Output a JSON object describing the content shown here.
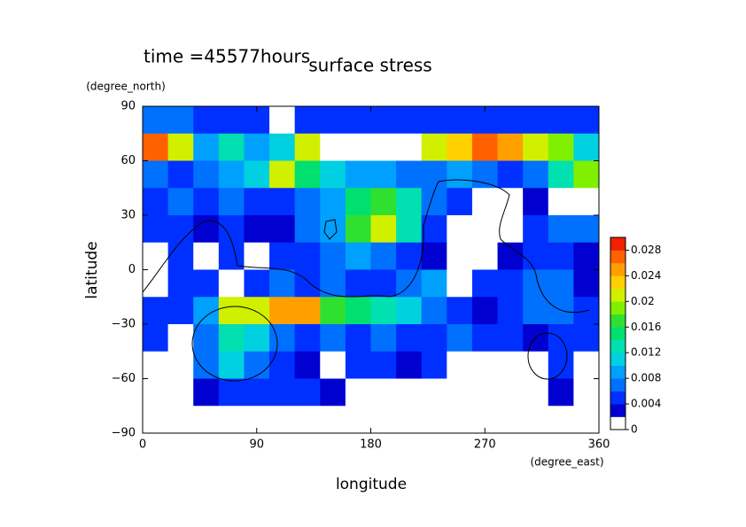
{
  "chart_data": {
    "type": "contour",
    "title": "surface stress",
    "subtitle": "time =45577hours",
    "x_label": "longitude",
    "x_units": "(degree_east)",
    "y_label": "latitude",
    "y_units": "(degree_north)",
    "xlim": [
      0,
      360
    ],
    "ylim": [
      -90,
      90
    ],
    "xticks": [
      0,
      90,
      180,
      270,
      360
    ],
    "yticks": [
      {
        "value": -90,
        "label": "−90"
      },
      {
        "value": -60,
        "label": "−60"
      },
      {
        "value": -30,
        "label": "−30"
      },
      0,
      30,
      60,
      90
    ],
    "x": [
      10,
      30,
      50,
      70,
      90,
      110,
      130,
      150,
      170,
      190,
      210,
      230,
      250,
      270,
      290,
      310,
      330,
      350
    ],
    "y": [
      82.5,
      67.5,
      52.5,
      37.5,
      22.5,
      7.5,
      -7.5,
      -22.5,
      -37.5,
      -52.5,
      -67.5,
      -82.5
    ],
    "z": [
      [
        0.006,
        0.006,
        0.005,
        0.005,
        0.004,
        0.001,
        0.005,
        0.005,
        0.005,
        0.005,
        0.005,
        0.005,
        0.005,
        0.005,
        0.005,
        0.005,
        0.005,
        0.005
      ],
      [
        0.026,
        0.02,
        0.008,
        0.012,
        0.008,
        0.01,
        0.02,
        0.03,
        0.032,
        0.032,
        0.03,
        0.02,
        0.022,
        0.026,
        0.024,
        0.02,
        0.018,
        0.01
      ],
      [
        0.006,
        0.004,
        0.006,
        0.008,
        0.01,
        0.02,
        0.014,
        0.01,
        0.008,
        0.008,
        0.006,
        0.006,
        0.008,
        0.006,
        0.004,
        0.006,
        0.012,
        0.018
      ],
      [
        0.004,
        0.006,
        0.004,
        0.006,
        0.004,
        0.004,
        0.006,
        0.008,
        0.014,
        0.016,
        0.012,
        0.006,
        0.004,
        0.001,
        0.001,
        0.002,
        0.001,
        0.001
      ],
      [
        0.004,
        0.004,
        0.002,
        0.004,
        0.002,
        0.003,
        0.006,
        0.008,
        0.016,
        0.02,
        0.012,
        0.004,
        0.001,
        0.001,
        0.001,
        0.004,
        0.006,
        0.006
      ],
      [
        0.001,
        0.004,
        0.001,
        0.004,
        0.001,
        0.004,
        0.004,
        0.006,
        0.008,
        0.006,
        0.004,
        0.003,
        0.001,
        0.001,
        0.003,
        0.004,
        0.004,
        0.003
      ],
      [
        0.001,
        0.004,
        0.004,
        0.001,
        0.004,
        0.006,
        0.004,
        0.006,
        0.004,
        0.004,
        0.006,
        0.008,
        0.001,
        0.004,
        0.004,
        0.006,
        0.006,
        0.002
      ],
      [
        0.004,
        0.004,
        0.008,
        0.02,
        0.02,
        0.024,
        0.024,
        0.016,
        0.014,
        0.012,
        0.01,
        0.006,
        0.004,
        0.002,
        0.004,
        0.006,
        0.006,
        0.004
      ],
      [
        0.004,
        0.001,
        0.006,
        0.012,
        0.01,
        0.006,
        0.004,
        0.006,
        0.004,
        0.006,
        0.004,
        0.004,
        0.006,
        0.004,
        0.004,
        0.002,
        0.004,
        0.004
      ],
      [
        0.001,
        0.001,
        0.006,
        0.01,
        0.006,
        0.004,
        0.003,
        0.001,
        0.004,
        0.004,
        0.002,
        0.004,
        0.001,
        0.001,
        0.001,
        0.001,
        0.004,
        0.001
      ],
      [
        0.001,
        0.001,
        0.002,
        0.004,
        0.004,
        0.004,
        0.004,
        0.002,
        0.001,
        0.001,
        0.001,
        0.001,
        0.001,
        0.001,
        0.001,
        0.001,
        0.002,
        0.001
      ],
      [
        0.001,
        0.001,
        0.001,
        0.001,
        0.001,
        0.001,
        0.001,
        0.001,
        0.001,
        0.001,
        0.001,
        0.001,
        0.001,
        0.001,
        0.001,
        0.001,
        0.001,
        0.001
      ]
    ],
    "levels": [
      0,
      0.002,
      0.004,
      0.006,
      0.008,
      0.01,
      0.012,
      0.014,
      0.016,
      0.018,
      0.02,
      0.022,
      0.024,
      0.026,
      0.028,
      0.03
    ],
    "colors": [
      "#ffffff",
      "#0000d0",
      "#0030ff",
      "#0070ff",
      "#00a0ff",
      "#00d0e0",
      "#00e0b0",
      "#00e070",
      "#30e030",
      "#80f000",
      "#d0f000",
      "#ffd000",
      "#ffa000",
      "#ff6000",
      "#f02000"
    ],
    "over_color": "#ffffff",
    "colorbar_ticks": [
      0,
      0.004,
      0.008,
      0.012,
      0.016,
      0.02,
      0.024,
      0.028
    ]
  }
}
